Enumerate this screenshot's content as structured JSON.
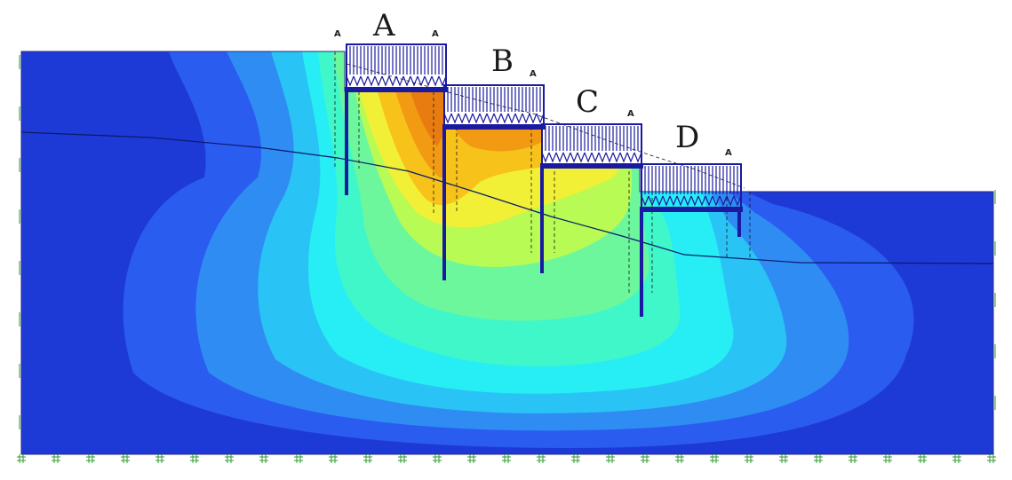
{
  "colors": {
    "background": "#ffffff",
    "deep_blue": "#1e3ad6",
    "blue": "#2a5cf0",
    "light_blue": "#2f8cf3",
    "sky": "#29c4f5",
    "cyan": "#27eef5",
    "aqua": "#3ff7c9",
    "mint": "#6df79d",
    "lime": "#b8fb55",
    "yellow": "#f2f036",
    "gold": "#f7c21a",
    "orange": "#f39a13",
    "dark_orange": "#e97c10",
    "structure": "#1a1aa0",
    "mesh_mark": "#2f9b2f",
    "phreatic_line": "#0a1a6a"
  },
  "walls": [
    {
      "label": "A",
      "marker": "A"
    },
    {
      "label": "B",
      "marker": "A"
    },
    {
      "label": "C",
      "marker": "A"
    },
    {
      "label": "D",
      "marker": "A"
    }
  ],
  "extra_markers": [
    "A"
  ],
  "icons": {
    "fixity_mark": "hash-symbol"
  }
}
